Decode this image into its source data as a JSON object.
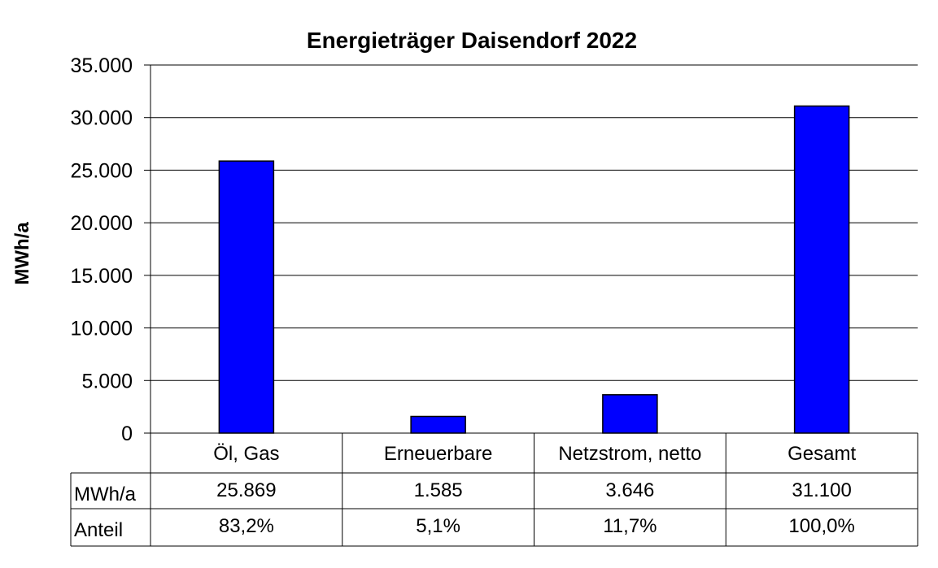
{
  "chart_data": {
    "type": "bar",
    "title": "Energieträger Daisendorf 2022",
    "ylabel": "MWh/a",
    "xlabel": "",
    "ylim": [
      0,
      35000
    ],
    "yticks": [
      "0",
      "5.000",
      "10.000",
      "15.000",
      "20.000",
      "25.000",
      "30.000",
      "35.000"
    ],
    "ytick_values": [
      0,
      5000,
      10000,
      15000,
      20000,
      25000,
      30000,
      35000
    ],
    "categories": [
      "Öl, Gas",
      "Erneuerbare",
      "Netzstrom, netto",
      "Gesamt"
    ],
    "values": [
      25869,
      1585,
      3646,
      31100
    ],
    "bar_color": "#0000ff",
    "grid": true,
    "legend": "none",
    "table": {
      "rows": [
        {
          "label": "MWh/a",
          "cells": [
            "25.869",
            "1.585",
            "3.646",
            "31.100"
          ]
        },
        {
          "label": "Anteil",
          "cells": [
            "83,2%",
            "5,1%",
            "11,7%",
            "100,0%"
          ]
        }
      ]
    }
  }
}
